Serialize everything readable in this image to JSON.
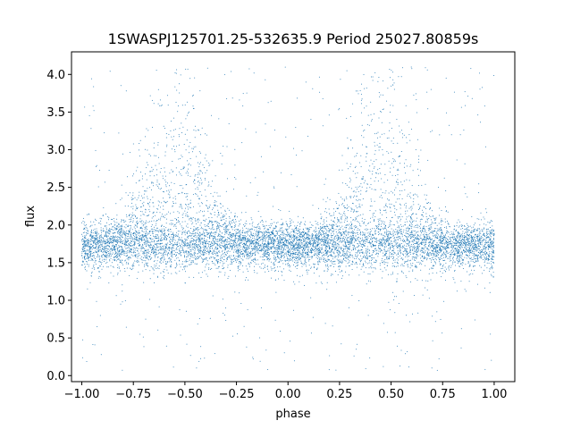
{
  "chart_data": {
    "type": "scatter",
    "title": "1SWASPJ125701.25-532635.9 Period 25027.80859s",
    "xlabel": "phase",
    "ylabel": "flux",
    "xlim": [
      -1.05,
      1.1
    ],
    "ylim": [
      -0.08,
      4.3
    ],
    "xticks": [
      -1.0,
      -0.75,
      -0.5,
      -0.25,
      0.0,
      0.25,
      0.5,
      0.75,
      1.0
    ],
    "xtick_labels": [
      "−1.00",
      "−0.75",
      "−0.50",
      "−0.25",
      "0.00",
      "0.25",
      "0.50",
      "0.75",
      "1.00"
    ],
    "yticks": [
      0.0,
      0.5,
      1.0,
      1.5,
      2.0,
      2.5,
      3.0,
      3.5,
      4.0
    ],
    "ytick_labels": [
      "0.0",
      "0.5",
      "1.0",
      "1.5",
      "2.0",
      "2.5",
      "3.0",
      "3.5",
      "4.0"
    ],
    "grid": false,
    "series_color": "#1f77b4",
    "envelope": {
      "description_points": [
        {
          "phase": -1.0,
          "baseline": 1.7,
          "upper": 2.3
        },
        {
          "phase": -0.75,
          "baseline": 1.75,
          "upper": 2.4
        },
        {
          "phase": -0.55,
          "baseline": 1.7,
          "upper": 3.5
        },
        {
          "phase": -0.25,
          "baseline": 1.7,
          "upper": 2.4
        },
        {
          "phase": 0.0,
          "baseline": 1.7,
          "upper": 2.0
        },
        {
          "phase": 0.2,
          "baseline": 1.7,
          "upper": 2.1
        },
        {
          "phase": 0.45,
          "baseline": 1.7,
          "upper": 3.5
        },
        {
          "phase": 0.75,
          "baseline": 1.75,
          "upper": 2.4
        },
        {
          "phase": 1.0,
          "baseline": 1.7,
          "upper": 2.3
        }
      ]
    }
  }
}
